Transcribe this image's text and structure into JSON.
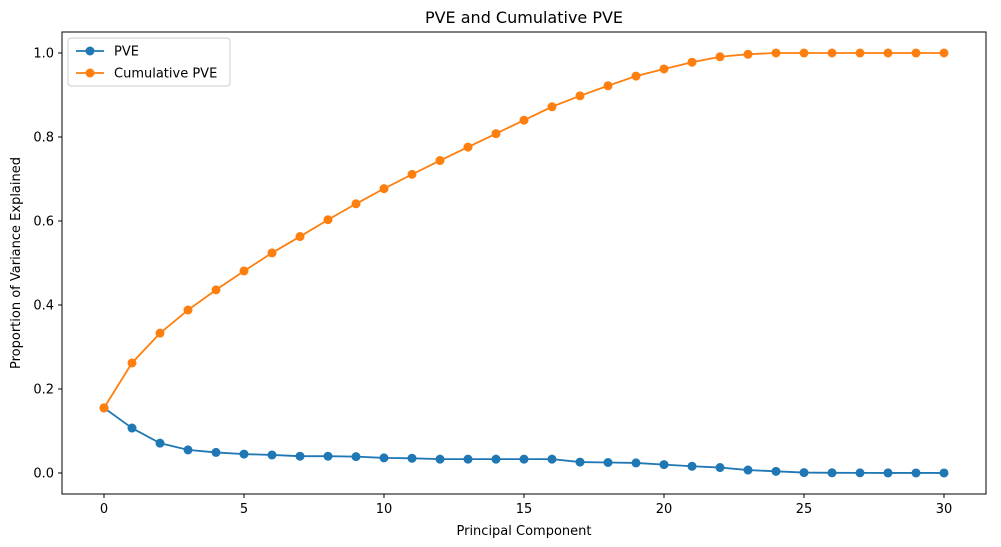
{
  "chart_data": {
    "type": "line",
    "title": "PVE and Cumulative PVE",
    "xlabel": "Principal Component",
    "ylabel": "Proportion of Variance Explained",
    "xlim": [
      -1.5,
      31.5
    ],
    "ylim": [
      -0.05,
      1.05
    ],
    "xticks": [
      0,
      5,
      10,
      15,
      20,
      25,
      30
    ],
    "yticks": [
      0.0,
      0.2,
      0.4,
      0.6,
      0.8,
      1.0
    ],
    "xtick_labels": [
      "0",
      "5",
      "10",
      "15",
      "20",
      "25",
      "30"
    ],
    "ytick_labels": [
      "0.0",
      "0.2",
      "0.4",
      "0.6",
      "0.8",
      "1.0"
    ],
    "grid": false,
    "legend_position": "top-left",
    "x": [
      0,
      1,
      2,
      3,
      4,
      5,
      6,
      7,
      8,
      9,
      10,
      11,
      12,
      13,
      14,
      15,
      16,
      17,
      18,
      19,
      20,
      21,
      22,
      23,
      24,
      25,
      26,
      27,
      28,
      29,
      30
    ],
    "series": [
      {
        "name": "PVE",
        "color": "#1f77b4",
        "marker": "circle",
        "values": [
          0.155,
          0.107,
          0.071,
          0.055,
          0.049,
          0.045,
          0.043,
          0.04,
          0.04,
          0.039,
          0.036,
          0.035,
          0.033,
          0.033,
          0.033,
          0.033,
          0.033,
          0.026,
          0.025,
          0.024,
          0.02,
          0.016,
          0.013,
          0.007,
          0.004,
          0.001,
          0.0005,
          0.0003,
          0.0002,
          0.0001,
          0.0001
        ]
      },
      {
        "name": "Cumulative PVE",
        "color": "#ff7f0e",
        "marker": "circle",
        "values": [
          0.155,
          0.262,
          0.333,
          0.388,
          0.436,
          0.481,
          0.524,
          0.563,
          0.603,
          0.641,
          0.677,
          0.711,
          0.744,
          0.776,
          0.808,
          0.84,
          0.872,
          0.898,
          0.922,
          0.945,
          0.962,
          0.978,
          0.991,
          0.997,
          1.0,
          1.0,
          1.0,
          1.0,
          1.0,
          1.0,
          1.0
        ]
      }
    ]
  }
}
